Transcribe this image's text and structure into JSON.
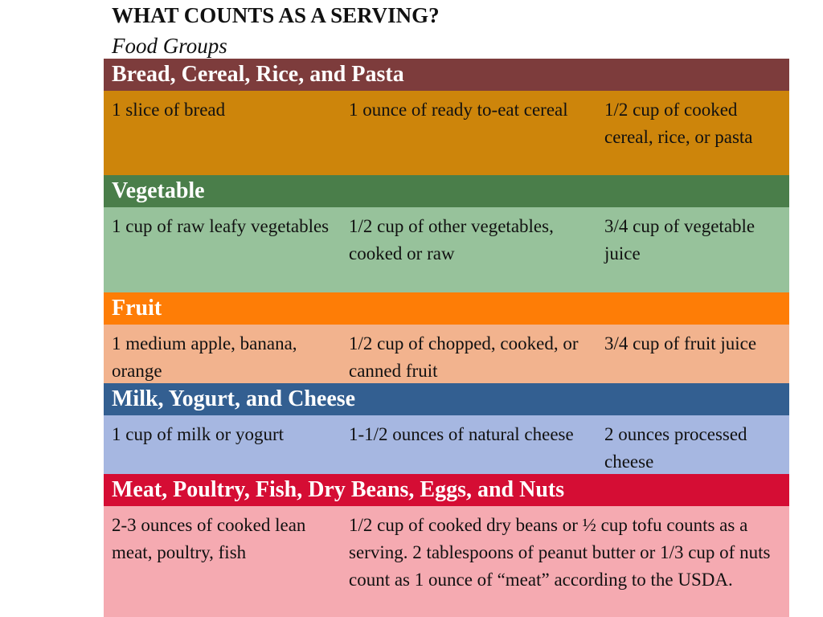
{
  "page": {
    "title": "WHAT COUNTS AS A SERVING?",
    "subtitle": "Food Groups"
  },
  "groups": [
    {
      "name": "Bread, Cereal, Rice, and Pasta",
      "header_color": "#7d3c3c",
      "row_color": "#cd850b",
      "cells": [
        "1 slice of bread",
        "1 ounce of ready to-eat cereal",
        "1/2 cup of cooked cereal, rice, or pasta"
      ]
    },
    {
      "name": "Vegetable",
      "header_color": "#4a7e4a",
      "row_color": "#97c29b",
      "cells": [
        "1 cup of  raw leafy vegetables",
        "1/2 cup of other vegetables, cooked or raw",
        "3/4 cup of vegetable juice"
      ]
    },
    {
      "name": "Fruit",
      "header_color": "#fe7d06",
      "row_color": "#f2b38e",
      "cells": [
        "1 medium apple, banana, orange",
        "1/2 cup of chopped, cooked, or canned fruit",
        "3/4 cup of fruit juice"
      ]
    },
    {
      "name": "Milk, Yogurt, and Cheese",
      "header_color": "#335f91",
      "row_color": "#a6b7e1",
      "cells": [
        "1 cup of milk or yogurt",
        "1-1/2 ounces of natural cheese",
        "2 ounces processed cheese"
      ]
    },
    {
      "name": "Meat, Poultry, Fish, Dry Beans, Eggs, and Nuts",
      "header_color": "#d50d34",
      "row_color": "#f5aab1",
      "cells": [
        "2-3 ounces of cooked lean meat, poultry, fish",
        "1/2 cup of cooked dry beans or ½ cup tofu counts as a serving. 2 tablespoons of peanut butter or 1/3 cup of nuts count as 1 ounce of “meat” according to the USDA."
      ]
    }
  ]
}
